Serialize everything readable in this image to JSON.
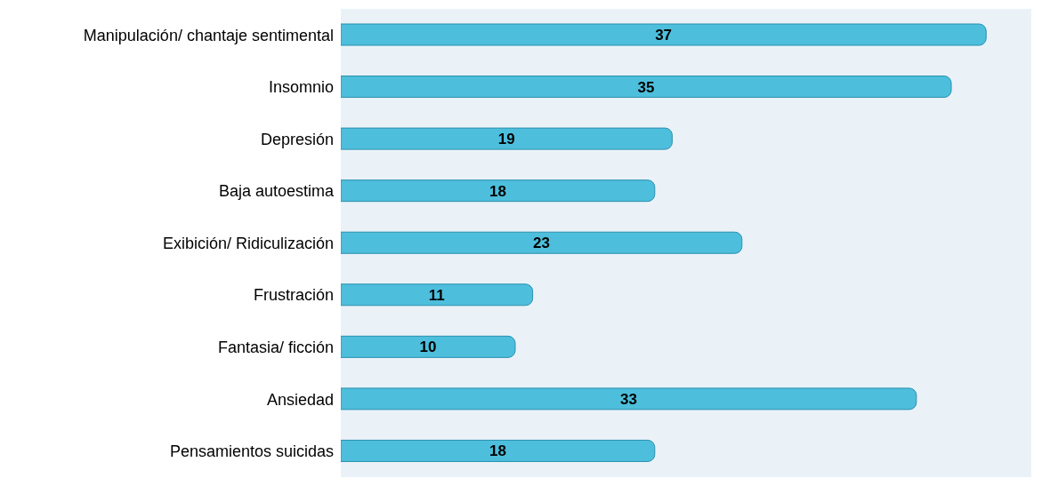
{
  "chart_data": {
    "type": "bar",
    "orientation": "horizontal",
    "categories": [
      "Manipulación/ chantaje sentimental",
      "Insomnio",
      "Depresión",
      "Baja autoestima",
      "Exibición/ Ridiculización",
      "Frustración",
      "Fantasia/ ficción",
      "Ansiedad",
      "Pensamientos suicidas"
    ],
    "values": [
      37,
      35,
      19,
      18,
      23,
      11,
      10,
      33,
      18
    ],
    "color": "#4dbfdc",
    "data_labels": true,
    "grid": false
  }
}
